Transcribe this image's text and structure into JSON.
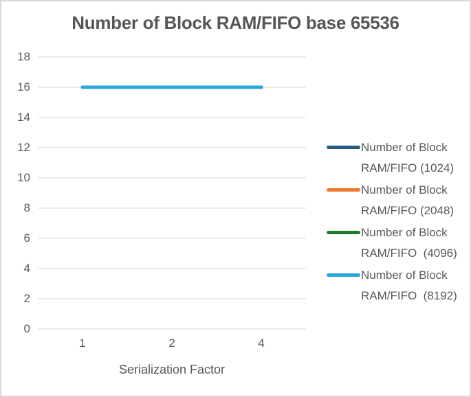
{
  "frame": {
    "background": "#ffffff",
    "border_color": "#d9d9d9",
    "text_color": "#595959",
    "grid_color": "#d9d9d9"
  },
  "chart_data": {
    "type": "line",
    "title": "Number of Block RAM/FIFO base 65536",
    "xlabel": "Serialization Factor",
    "ylabel": "",
    "categories": [
      "1",
      "2",
      "4"
    ],
    "ylim": [
      0,
      18
    ],
    "yticks": [
      0,
      2,
      4,
      6,
      8,
      10,
      12,
      14,
      16,
      18
    ],
    "grid": true,
    "legend_position": "right",
    "series": [
      {
        "name": "Number of Block RAM/FIFO (1024)",
        "label_lines": [
          "Number of Block",
          "RAM/FIFO (1024)"
        ],
        "color": "#255E7E",
        "values": [
          16,
          16,
          16
        ]
      },
      {
        "name": "Number of Block RAM/FIFO (2048)",
        "label_lines": [
          "Number of Block",
          "RAM/FIFO (2048)"
        ],
        "color": "#EC7A2F",
        "values": [
          16,
          16,
          16
        ]
      },
      {
        "name": "Number of Block RAM/FIFO  (4096)",
        "label_lines": [
          "Number of Block",
          "RAM/FIFO  (4096)"
        ],
        "color": "#217B2E",
        "values": [
          16,
          16,
          16
        ]
      },
      {
        "name": "Number of Block RAM/FIFO  (8192)",
        "label_lines": [
          "Number of Block",
          "RAM/FIFO  (8192)"
        ],
        "color": "#2BA5DE",
        "values": [
          16,
          16,
          16
        ]
      }
    ],
    "note_visible_line_value": 16
  }
}
